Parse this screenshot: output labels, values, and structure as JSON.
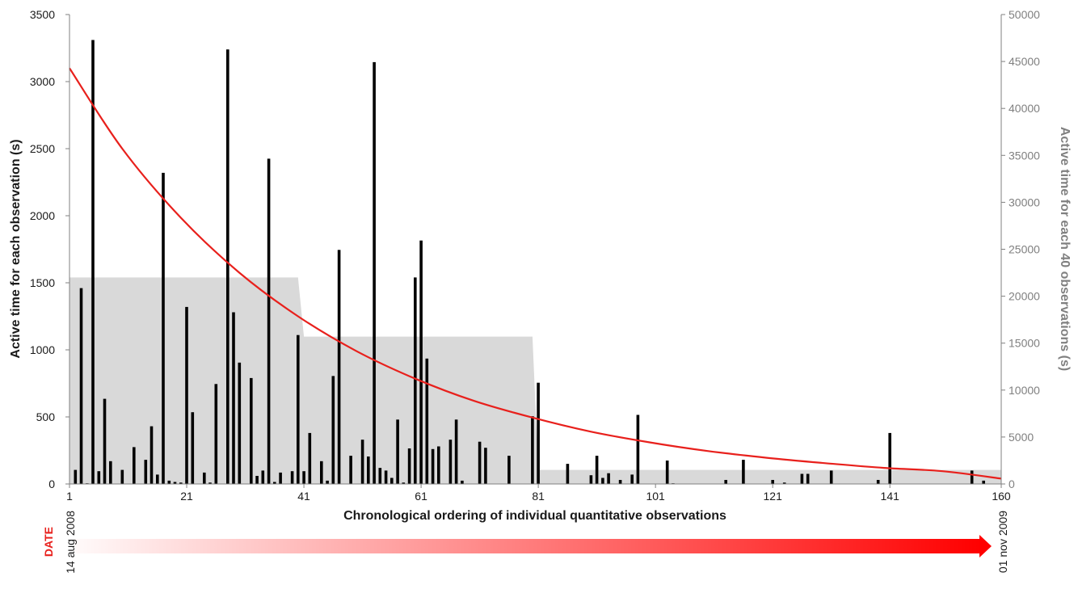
{
  "chart_data": {
    "type": "bar",
    "xlabel": "Chronological ordering of individual quantitative observations",
    "ylabel_left": "Active time for each observation (s)",
    "ylabel_right": "Active time for each 40 observations (s)",
    "x_range": [
      1,
      160
    ],
    "x_ticks": [
      1,
      21,
      41,
      61,
      81,
      101,
      121,
      141,
      160
    ],
    "ylim_left": [
      0,
      3500
    ],
    "y_ticks_left": [
      0,
      500,
      1000,
      1500,
      2000,
      2500,
      3000,
      3500
    ],
    "ylim_right": [
      0,
      50000
    ],
    "y_ticks_right": [
      0,
      5000,
      10000,
      15000,
      20000,
      25000,
      30000,
      35000,
      40000,
      45000,
      50000
    ],
    "grid": false,
    "series": [
      {
        "kind": "bars",
        "axis": "left",
        "color": "#000000",
        "points": [
          [
            2,
            105
          ],
          [
            3,
            1460
          ],
          [
            4,
            5
          ],
          [
            5,
            3310
          ],
          [
            6,
            95
          ],
          [
            7,
            635
          ],
          [
            8,
            170
          ],
          [
            10,
            105
          ],
          [
            12,
            275
          ],
          [
            14,
            180
          ],
          [
            15,
            430
          ],
          [
            16,
            70
          ],
          [
            17,
            2320
          ],
          [
            18,
            25
          ],
          [
            19,
            15
          ],
          [
            20,
            10
          ],
          [
            21,
            1320
          ],
          [
            22,
            535
          ],
          [
            24,
            85
          ],
          [
            25,
            10
          ],
          [
            26,
            745
          ],
          [
            28,
            3240
          ],
          [
            29,
            1280
          ],
          [
            30,
            905
          ],
          [
            32,
            790
          ],
          [
            33,
            60
          ],
          [
            34,
            100
          ],
          [
            35,
            2425
          ],
          [
            36,
            15
          ],
          [
            37,
            85
          ],
          [
            39,
            95
          ],
          [
            40,
            1110
          ],
          [
            41,
            95
          ],
          [
            42,
            380
          ],
          [
            44,
            170
          ],
          [
            45,
            25
          ],
          [
            46,
            805
          ],
          [
            47,
            1745
          ],
          [
            49,
            210
          ],
          [
            51,
            330
          ],
          [
            52,
            205
          ],
          [
            53,
            3145
          ],
          [
            54,
            120
          ],
          [
            55,
            100
          ],
          [
            56,
            45
          ],
          [
            57,
            480
          ],
          [
            58,
            10
          ],
          [
            59,
            265
          ],
          [
            60,
            1540
          ],
          [
            61,
            1815
          ],
          [
            62,
            935
          ],
          [
            63,
            260
          ],
          [
            64,
            280
          ],
          [
            66,
            330
          ],
          [
            67,
            480
          ],
          [
            68,
            25
          ],
          [
            71,
            315
          ],
          [
            72,
            270
          ],
          [
            76,
            210
          ],
          [
            80,
            505
          ],
          [
            81,
            755
          ],
          [
            86,
            150
          ],
          [
            90,
            65
          ],
          [
            91,
            210
          ],
          [
            92,
            45
          ],
          [
            93,
            80
          ],
          [
            95,
            30
          ],
          [
            97,
            70
          ],
          [
            98,
            515
          ],
          [
            103,
            175
          ],
          [
            104,
            5
          ],
          [
            113,
            30
          ],
          [
            116,
            180
          ],
          [
            121,
            30
          ],
          [
            123,
            10
          ],
          [
            126,
            75
          ],
          [
            127,
            75
          ],
          [
            131,
            100
          ],
          [
            139,
            30
          ],
          [
            141,
            380
          ],
          [
            155,
            100
          ],
          [
            157,
            25
          ]
        ]
      },
      {
        "kind": "area",
        "axis": "right",
        "color": "#d9d9d9",
        "points": [
          [
            1,
            22000
          ],
          [
            40,
            22000
          ],
          [
            41,
            15700
          ],
          [
            80,
            15700
          ],
          [
            81,
            1500
          ],
          [
            160,
            1500
          ]
        ]
      },
      {
        "kind": "line",
        "axis": "left",
        "color": "#e8201c",
        "points": [
          [
            1,
            3100
          ],
          [
            10,
            2500
          ],
          [
            20,
            1985
          ],
          [
            30,
            1575
          ],
          [
            40,
            1250
          ],
          [
            50,
            990
          ],
          [
            60,
            785
          ],
          [
            70,
            620
          ],
          [
            80,
            495
          ],
          [
            90,
            390
          ],
          [
            100,
            310
          ],
          [
            110,
            245
          ],
          [
            120,
            195
          ],
          [
            130,
            155
          ],
          [
            140,
            120
          ],
          [
            150,
            95
          ],
          [
            160,
            40
          ]
        ]
      }
    ],
    "date_axis": {
      "title": "DATE",
      "start": "14 aug 2008",
      "end": "01 nov 2009",
      "color": "#ff0000"
    }
  }
}
